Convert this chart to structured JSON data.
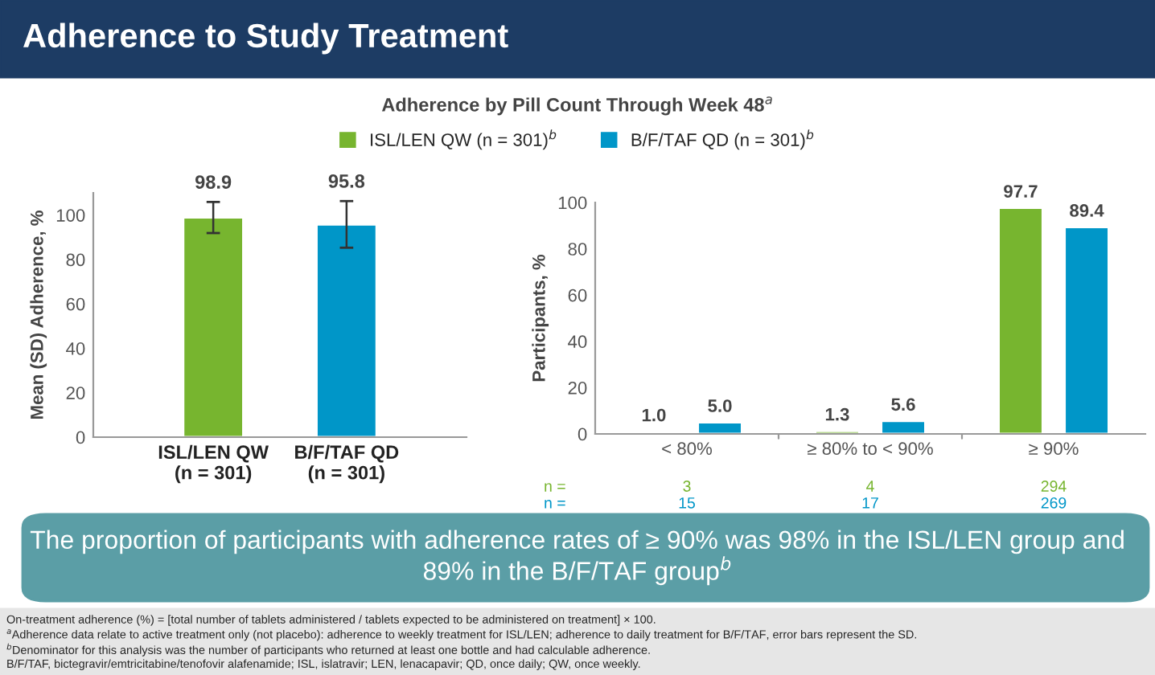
{
  "chart_data": [
    {
      "type": "other",
      "title": "Adherence to Study Treatment",
      "subtitle": "Adherence by Pill Count Through Week 48$^{a}$",
      "annotations": [
        "The proportion of participants with adherence rates of ≥ 90% was 98% in the ISL/LEN group and 89% in the B/F/TAF group$^{b}$",
        "On-treatment adherence (%) = [total number of tablets administered / tablets expected to be administered on treatment] × 100.",
        "$^{a}$Adherence data relate to active treatment only (not placebo): adherence to weekly treatment for ISL/LEN; adherence to daily treatment for B/F/TAF, error bars represent the SD.",
        "$^{b}$Denominator for this analysis was the number of participants who returned at least one bottle and had calculable adherence.",
        "B/F/TAF, bictegravir/emtricitabine/tenofovir alafenamide; ISL, islatravir; LEN, lenacapavir; QD, once daily; QW, once weekly."
      ]
    },
    {
      "type": "bar",
      "ylabel": "Mean (SD) Adherence, %",
      "categories": [
        "ISL/LEN QW\n(n = 301)",
        "B/F/TAF QD\n(n = 301)"
      ],
      "values": [
        98.9,
        95.8
      ],
      "colors": [
        "#77b52f",
        "#0096c8"
      ],
      "errors": [
        7,
        10.5
      ],
      "ylim": [
        0,
        110
      ],
      "yticks": [
        0,
        20,
        40,
        60,
        80,
        100
      ],
      "data_labels": true
    },
    {
      "type": "bar",
      "ylabel": "Participants, %",
      "categories": [
        "< 80%",
        "≥ 80% to < 90%",
        "≥ 90%"
      ],
      "series": [
        {
          "name": "ISL/LEN QW (n = 301)$^{b}$",
          "color": "#77b52f",
          "values": [
            1.0,
            1.3,
            97.7
          ],
          "value_labels": [
            "1.0",
            "1.3",
            "97.7"
          ]
        },
        {
          "name": "B/F/TAF QD (n = 301)$^{b}$",
          "color": "#0096c8",
          "values": [
            5.0,
            5.6,
            89.4
          ],
          "value_labels": [
            "5.0",
            "5.6",
            "89.4"
          ]
        }
      ],
      "ylim": [
        0,
        100
      ],
      "yticks": [
        0,
        20,
        40,
        60,
        80,
        100
      ],
      "legend": "top",
      "annotations": [
        "n =",
        "3",
        "4",
        "294",
        "n =",
        "15",
        "17",
        "269"
      ]
    }
  ]
}
